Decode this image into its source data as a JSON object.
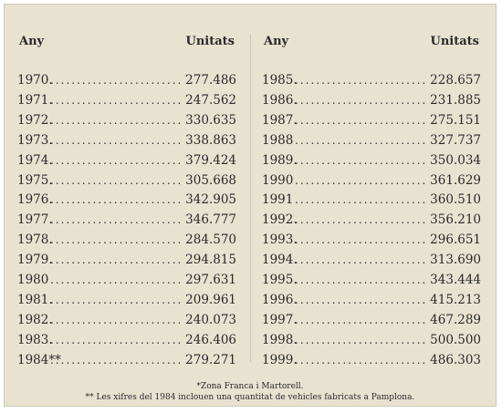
{
  "left": {
    "header_year": "Any",
    "header_units": "Unitats",
    "rows": [
      {
        "year": "1970.",
        "units": "277.486"
      },
      {
        "year": "1971.",
        "units": "247.562"
      },
      {
        "year": "1972.",
        "units": "330.635"
      },
      {
        "year": "1973.",
        "units": "338.863"
      },
      {
        "year": "1974.",
        "units": "379.424"
      },
      {
        "year": "1975.",
        "units": "305.668"
      },
      {
        "year": "1976.",
        "units": "342.905"
      },
      {
        "year": "1977.",
        "units": "346.777"
      },
      {
        "year": "1978.",
        "units": "284.570"
      },
      {
        "year": "1979.",
        "units": "294.815"
      },
      {
        "year": "1980",
        "units": "297.631"
      },
      {
        "year": "1981.",
        "units": "209.961"
      },
      {
        "year": "1982.",
        "units": "240.073"
      },
      {
        "year": "1983.",
        "units": "246.406"
      },
      {
        "year": "1984**",
        "units": "279.271"
      }
    ]
  },
  "right": {
    "header_year": "Any",
    "header_units": "Unitats",
    "rows": [
      {
        "year": "1985.",
        "units": "228.657"
      },
      {
        "year": "1986.",
        "units": "231.885"
      },
      {
        "year": "1987.",
        "units": "275.151"
      },
      {
        "year": "1988",
        "units": "327.737"
      },
      {
        "year": "1989.",
        "units": "350.034"
      },
      {
        "year": "1990",
        "units": "361.629"
      },
      {
        "year": "1991",
        "units": "360.510"
      },
      {
        "year": "1992.",
        "units": "356.210"
      },
      {
        "year": "1993.",
        "units": "296.651"
      },
      {
        "year": "1994.",
        "units": "313.690"
      },
      {
        "year": "1995.",
        "units": "343.444"
      },
      {
        "year": "1996.",
        "units": "415.213"
      },
      {
        "year": "1997.",
        "units": "467.289"
      },
      {
        "year": "1998.",
        "units": "500.500"
      },
      {
        "year": "1999.",
        "units": "486.303"
      }
    ]
  },
  "notes": {
    "note1": "*Zona Franca i Martorell.",
    "note2": "** Les xifres del 1984 inclouen una quantitat de vehicles fabricats a Pamplona."
  }
}
